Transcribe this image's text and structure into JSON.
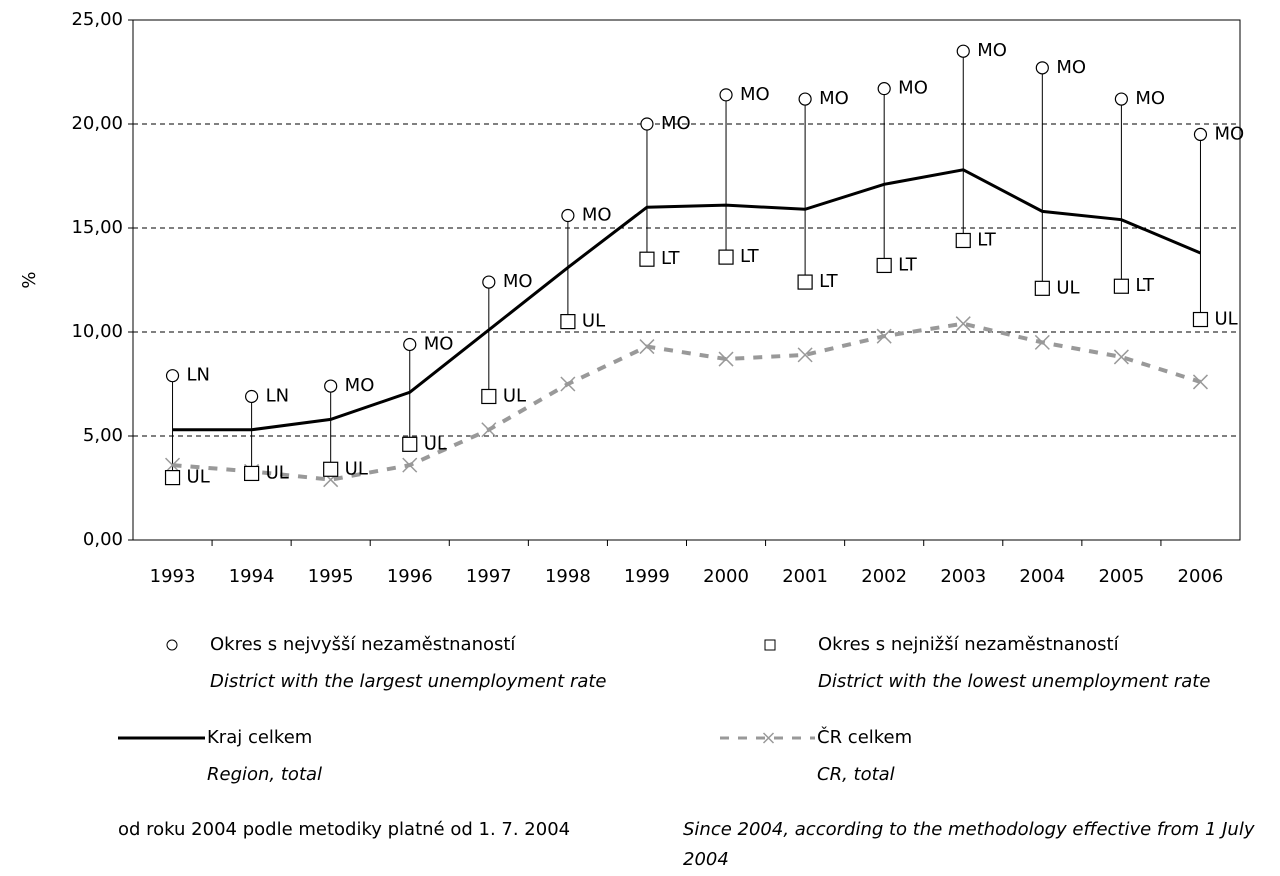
{
  "chart_data": {
    "type": "line",
    "y_label": "%",
    "categories": [
      "1993",
      "1994",
      "1995",
      "1996",
      "1997",
      "1998",
      "1999",
      "2000",
      "2001",
      "2002",
      "2003",
      "2004",
      "2005",
      "2006"
    ],
    "ylim": [
      0,
      25
    ],
    "yticks": [
      {
        "value": 0,
        "label": "0,00"
      },
      {
        "value": 5,
        "label": "5,00"
      },
      {
        "value": 10,
        "label": "10,00"
      },
      {
        "value": 15,
        "label": "15,00"
      },
      {
        "value": 20,
        "label": "20,00"
      },
      {
        "value": 25,
        "label": "25,00"
      }
    ],
    "grid": true,
    "series": [
      {
        "name": "Okres s nejvyšší nezaměstnaností",
        "name_en": "District with the largest unemployment rate",
        "marker": "circle",
        "color": "#000000",
        "values": [
          7.9,
          6.9,
          7.4,
          9.4,
          12.4,
          15.6,
          20.0,
          21.4,
          21.2,
          21.7,
          23.5,
          22.7,
          21.2,
          19.5
        ],
        "point_labels": [
          "LN",
          "LN",
          "MO",
          "MO",
          "MO",
          "MO",
          "MO",
          "MO",
          "MO",
          "MO",
          "MO",
          "MO",
          "MO",
          "MO"
        ]
      },
      {
        "name": "Okres s nejnižší nezaměstnaností",
        "name_en": "District with the lowest unemployment rate",
        "marker": "square",
        "color": "#000000",
        "values": [
          3.0,
          3.2,
          3.4,
          4.6,
          6.9,
          10.5,
          13.5,
          13.6,
          12.4,
          13.2,
          14.4,
          12.1,
          12.2,
          10.6
        ],
        "point_labels": [
          "UL",
          "UL",
          "UL",
          "UL",
          "UL",
          "UL",
          "LT",
          "LT",
          "LT",
          "LT",
          "LT",
          "UL",
          "LT",
          "UL"
        ]
      },
      {
        "name": "Kraj celkem",
        "name_en": "Region, total",
        "marker": "line",
        "color": "#000000",
        "values": [
          5.3,
          5.3,
          5.8,
          7.1,
          10.1,
          13.1,
          16.0,
          16.1,
          15.9,
          17.1,
          17.8,
          15.8,
          15.4,
          13.8
        ]
      },
      {
        "name": "ČR celkem",
        "name_en": "CR, total",
        "marker": "dashed-x",
        "color": "#999999",
        "values": [
          3.6,
          3.3,
          2.9,
          3.6,
          5.3,
          7.5,
          9.3,
          8.7,
          8.9,
          9.8,
          10.4,
          9.5,
          8.8,
          7.6
        ]
      }
    ],
    "notes": [
      "od roku 2004 podle metodiky platné od 1. 7. 2004",
      "Since 2004, according to the methodology effective from 1 July 2004"
    ]
  }
}
